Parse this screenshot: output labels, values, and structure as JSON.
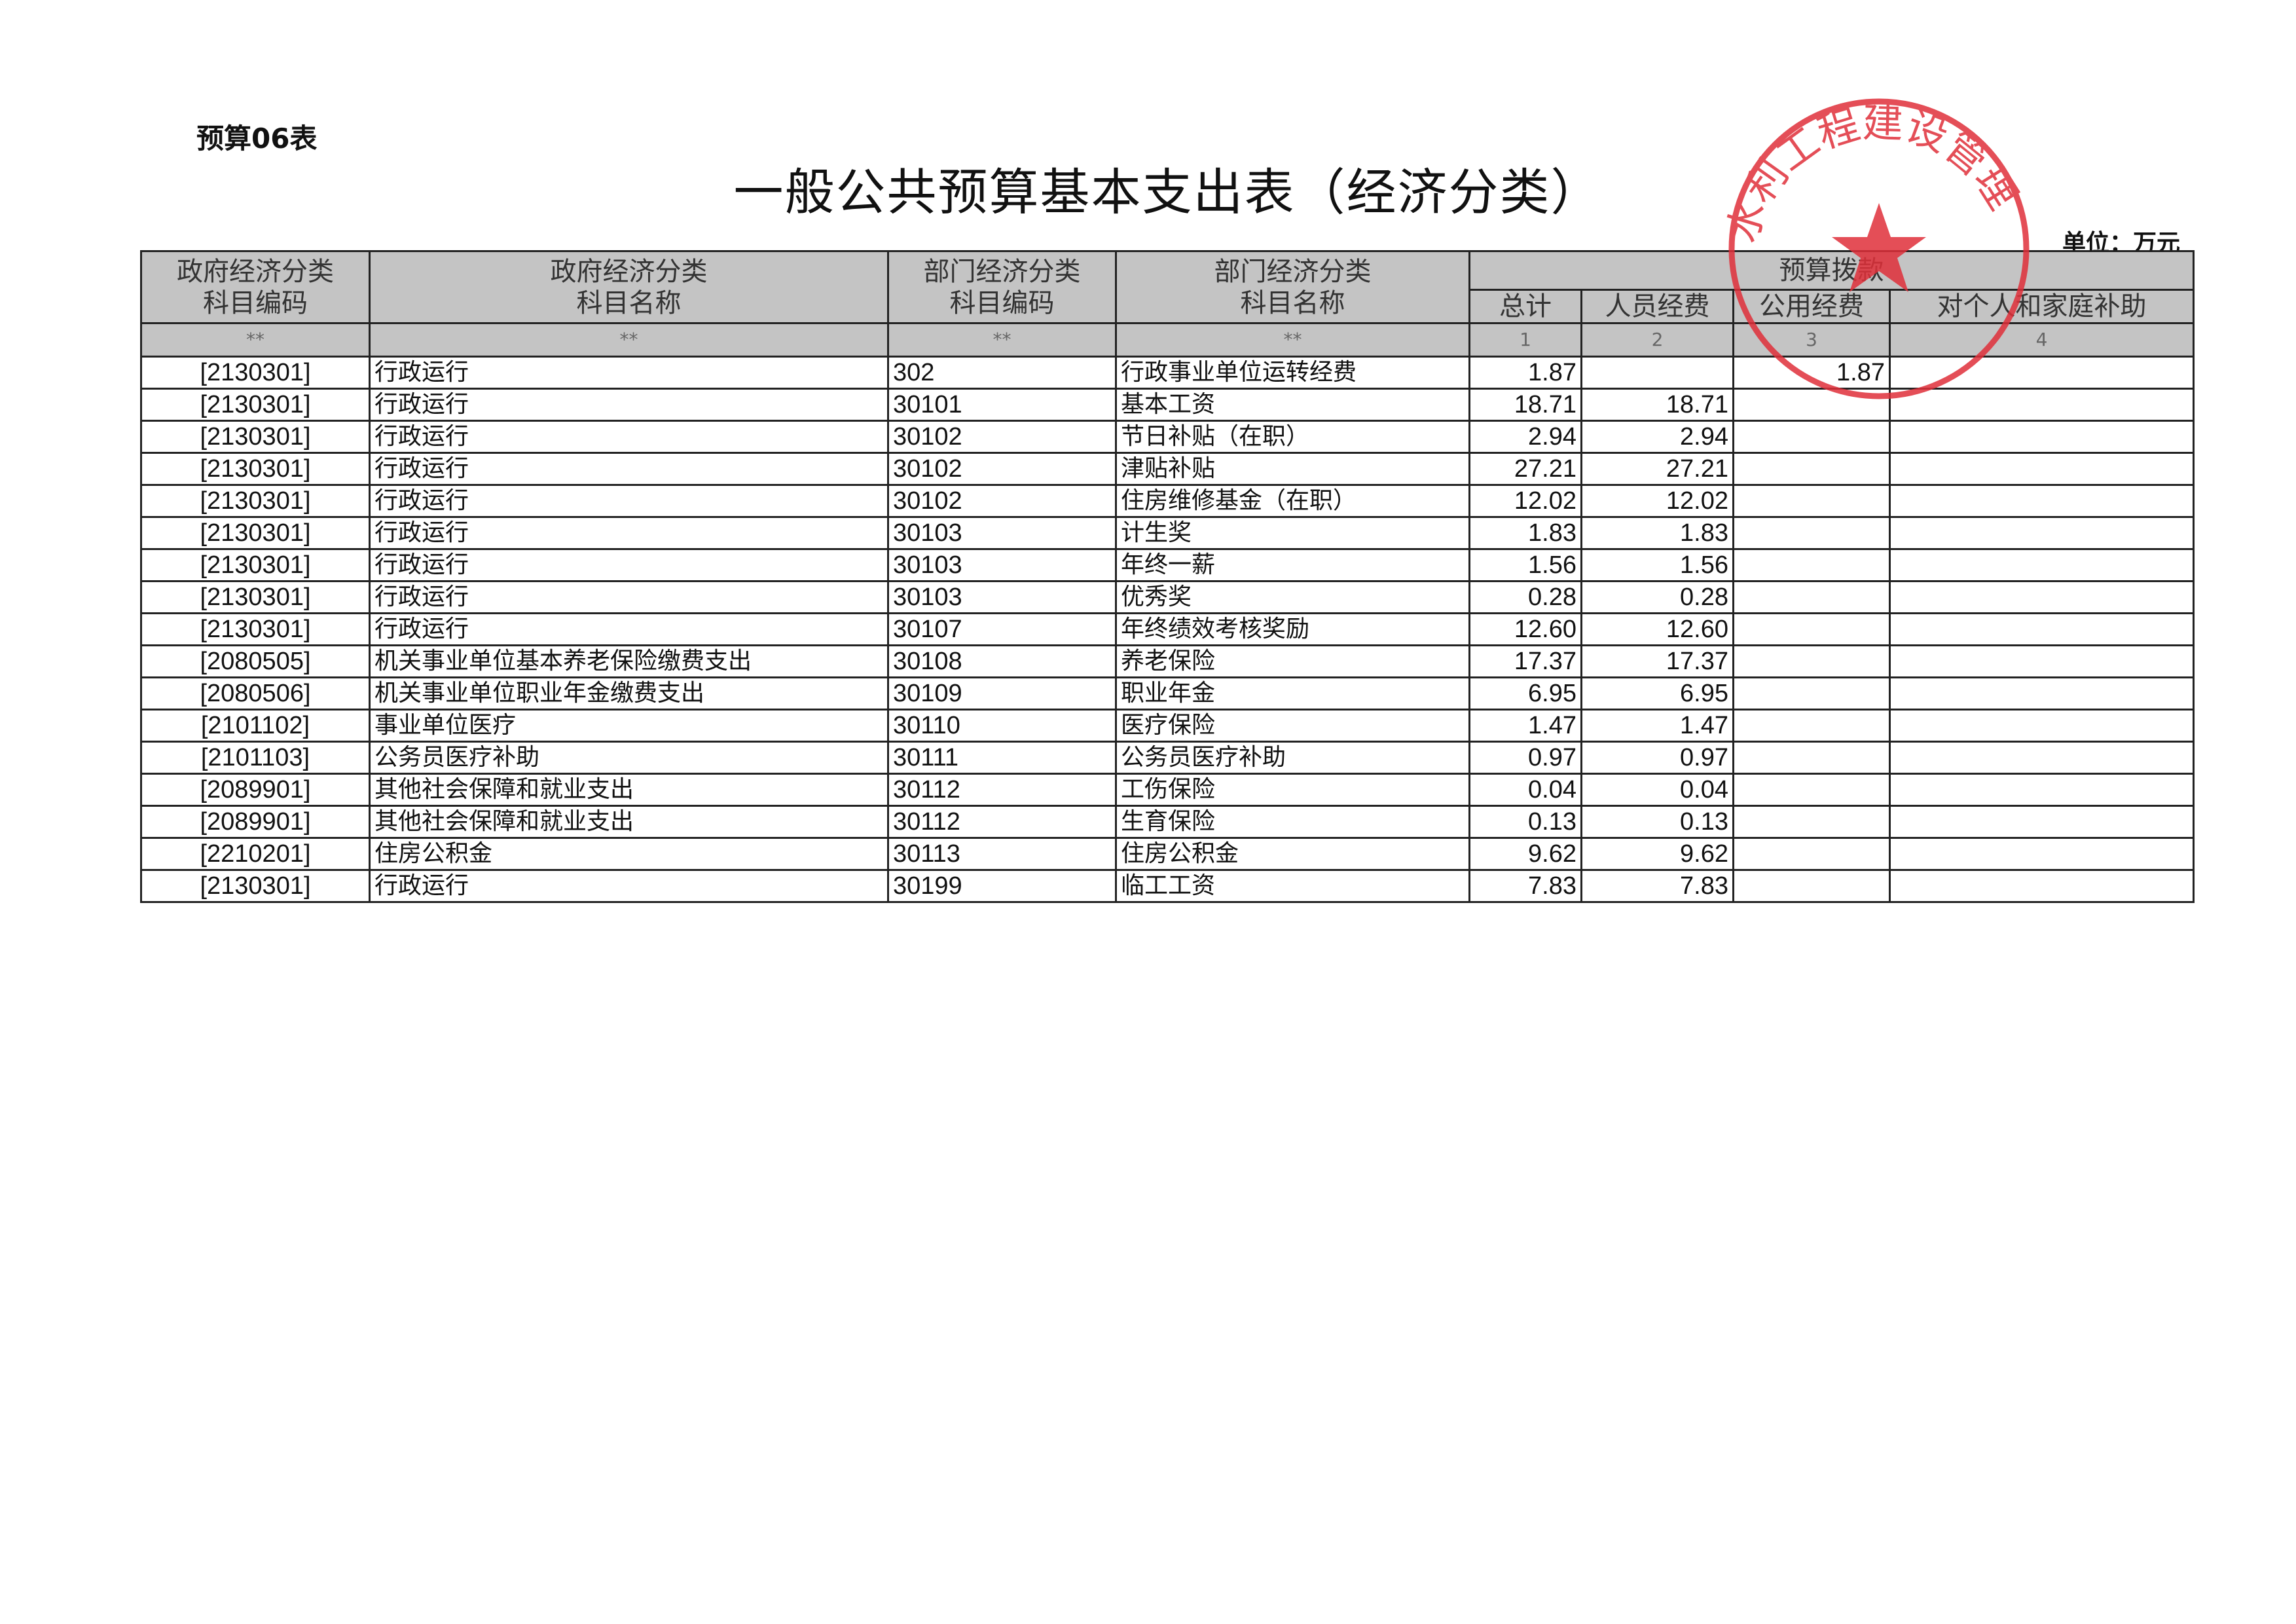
{
  "form_no": "预算06表",
  "title": "一般公共预算基本支出表（经济分类）",
  "unit": "单位：万元",
  "stamp": {
    "text": "水利工程建设管理",
    "color": "#e0303a"
  },
  "header": {
    "gov_code": [
      "政府经济分类",
      "科目编码"
    ],
    "gov_name": [
      "政府经济分类",
      "科目名称"
    ],
    "dept_code": [
      "部门经济分类",
      "科目编码"
    ],
    "dept_name": [
      "部门经济分类",
      "科目名称"
    ],
    "budget_group": "预算拨款",
    "total": "总计",
    "personnel": "人员经费",
    "public": "公用经费",
    "subsidy": "对个人和家庭补助",
    "marks": [
      "**",
      "**",
      "**",
      "**",
      "1",
      "2",
      "3",
      "4"
    ]
  },
  "rows": [
    [
      "[2130301]",
      "行政运行",
      "302",
      "行政事业单位运转经费",
      "1.87",
      "",
      "1.87",
      ""
    ],
    [
      "[2130301]",
      "行政运行",
      "30101",
      "基本工资",
      "18.71",
      "18.71",
      "",
      ""
    ],
    [
      "[2130301]",
      "行政运行",
      "30102",
      "节日补贴（在职）",
      "2.94",
      "2.94",
      "",
      ""
    ],
    [
      "[2130301]",
      "行政运行",
      "30102",
      "津贴补贴",
      "27.21",
      "27.21",
      "",
      ""
    ],
    [
      "[2130301]",
      "行政运行",
      "30102",
      "住房维修基金（在职）",
      "12.02",
      "12.02",
      "",
      ""
    ],
    [
      "[2130301]",
      "行政运行",
      "30103",
      "计生奖",
      "1.83",
      "1.83",
      "",
      ""
    ],
    [
      "[2130301]",
      "行政运行",
      "30103",
      "年终一薪",
      "1.56",
      "1.56",
      "",
      ""
    ],
    [
      "[2130301]",
      "行政运行",
      "30103",
      "优秀奖",
      "0.28",
      "0.28",
      "",
      ""
    ],
    [
      "[2130301]",
      "行政运行",
      "30107",
      "年终绩效考核奖励",
      "12.60",
      "12.60",
      "",
      ""
    ],
    [
      "[2080505]",
      "机关事业单位基本养老保险缴费支出",
      "30108",
      "养老保险",
      "17.37",
      "17.37",
      "",
      ""
    ],
    [
      "[2080506]",
      "机关事业单位职业年金缴费支出",
      "30109",
      "职业年金",
      "6.95",
      "6.95",
      "",
      ""
    ],
    [
      "[2101102]",
      "事业单位医疗",
      "30110",
      "医疗保险",
      "1.47",
      "1.47",
      "",
      ""
    ],
    [
      "[2101103]",
      "公务员医疗补助",
      "30111",
      "公务员医疗补助",
      "0.97",
      "0.97",
      "",
      ""
    ],
    [
      "[2089901]",
      "其他社会保障和就业支出",
      "30112",
      "工伤保险",
      "0.04",
      "0.04",
      "",
      ""
    ],
    [
      "[2089901]",
      "其他社会保障和就业支出",
      "30112",
      "生育保险",
      "0.13",
      "0.13",
      "",
      ""
    ],
    [
      "[2210201]",
      "住房公积金",
      "30113",
      "住房公积金",
      "9.62",
      "9.62",
      "",
      ""
    ],
    [
      "[2130301]",
      "行政运行",
      "30199",
      "临工工资",
      "7.83",
      "7.83",
      "",
      ""
    ]
  ]
}
